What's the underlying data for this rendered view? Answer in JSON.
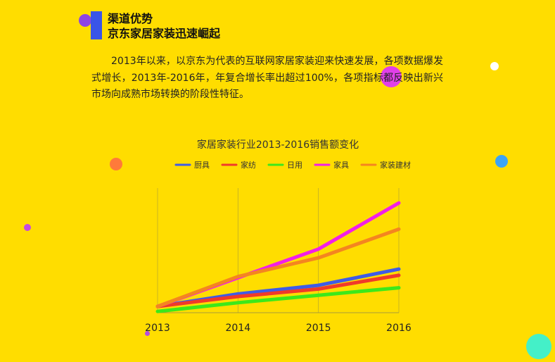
{
  "section": {
    "title": "渠道优势",
    "subtitle": "京东家居家装迅速崛起"
  },
  "paragraph": "2013年以来，以京东为代表的互联网家居家装迎来快速发展，各项数据爆发式增长，2013年-2016年，年复合增长率出超过100%，各项指标都反映出新兴市场向成熟市场转换的阶段性特征。",
  "colors": {
    "background": "#FFDD00",
    "accent_bar": "#3A55E8",
    "decor_dots": [
      "#8E44E6",
      "#E040E8",
      "#FFFFFF",
      "#FF7A3A",
      "#3BA4F5",
      "#C44BE0",
      "#B44CE0",
      "#44F0C8"
    ]
  },
  "chart_data": {
    "type": "line",
    "title": "家居家装行业2013-2016销售额变化",
    "x": [
      "2013",
      "2014",
      "2015",
      "2016"
    ],
    "xlabel": "",
    "ylabel": "",
    "ylim": [
      0,
      100
    ],
    "y_axis_labels_shown": false,
    "grid": "vertical",
    "legend": "top",
    "series": [
      {
        "name": "厨具",
        "color": "#3F5CE6",
        "values": [
          5,
          15,
          22,
          35
        ]
      },
      {
        "name": "家纺",
        "color": "#F03A2A",
        "values": [
          5,
          13,
          19,
          30
        ]
      },
      {
        "name": "日用",
        "color": "#3DE81A",
        "values": [
          1,
          8,
          14,
          20
        ]
      },
      {
        "name": "家具",
        "color": "#F21FE8",
        "values": [
          5,
          28,
          51,
          88
        ]
      },
      {
        "name": "家装建材",
        "color": "#F48520",
        "values": [
          5,
          29,
          44,
          67
        ]
      }
    ]
  }
}
